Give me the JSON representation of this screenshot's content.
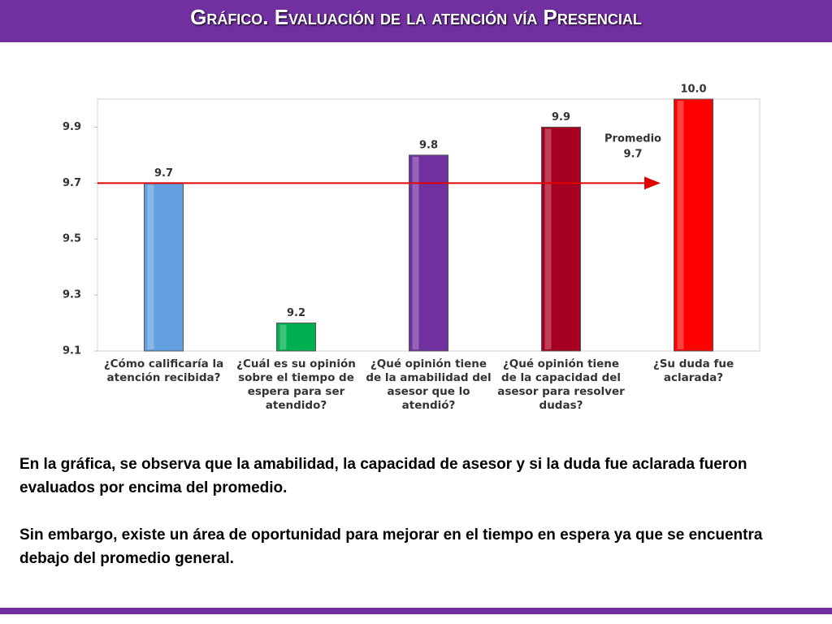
{
  "header": {
    "title": "Gráfico. Evaluación de la atención vía Presencial"
  },
  "chart_data": {
    "type": "bar",
    "categories": [
      "¿Cómo calificaría la atención recibida?",
      "¿Cuál es su opinión sobre el tiempo de espera para ser atendido?",
      "¿Qué opinión tiene de la amabilidad del asesor que lo atendió?",
      "¿Qué opinión tiene de la capacidad del asesor para resolver dudas?",
      "¿Su duda fue aclarada?"
    ],
    "values": [
      9.7,
      9.2,
      9.8,
      9.9,
      10.0
    ],
    "value_labels": [
      "9.7",
      "9.2",
      "9.8",
      "9.9",
      "10.0"
    ],
    "colors": [
      "#62a0e0",
      "#00b050",
      "#7030a0",
      "#a50021",
      "#ff0000"
    ],
    "ylim": [
      9.1,
      10.0
    ],
    "yticks": [
      9.1,
      9.3,
      9.5,
      9.7,
      9.9
    ],
    "average": {
      "label": "Promedio",
      "value": 9.7,
      "color": "#e00000"
    }
  },
  "body": {
    "paragraphs": [
      "En la gráfica, se observa que la amabilidad, la capacidad de asesor y si la duda fue aclarada fueron evaluados por encima del promedio.",
      "Sin embargo, existe un área de oportunidad para mejorar en el tiempo en espera ya que se encuentra debajo del  promedio general."
    ]
  }
}
